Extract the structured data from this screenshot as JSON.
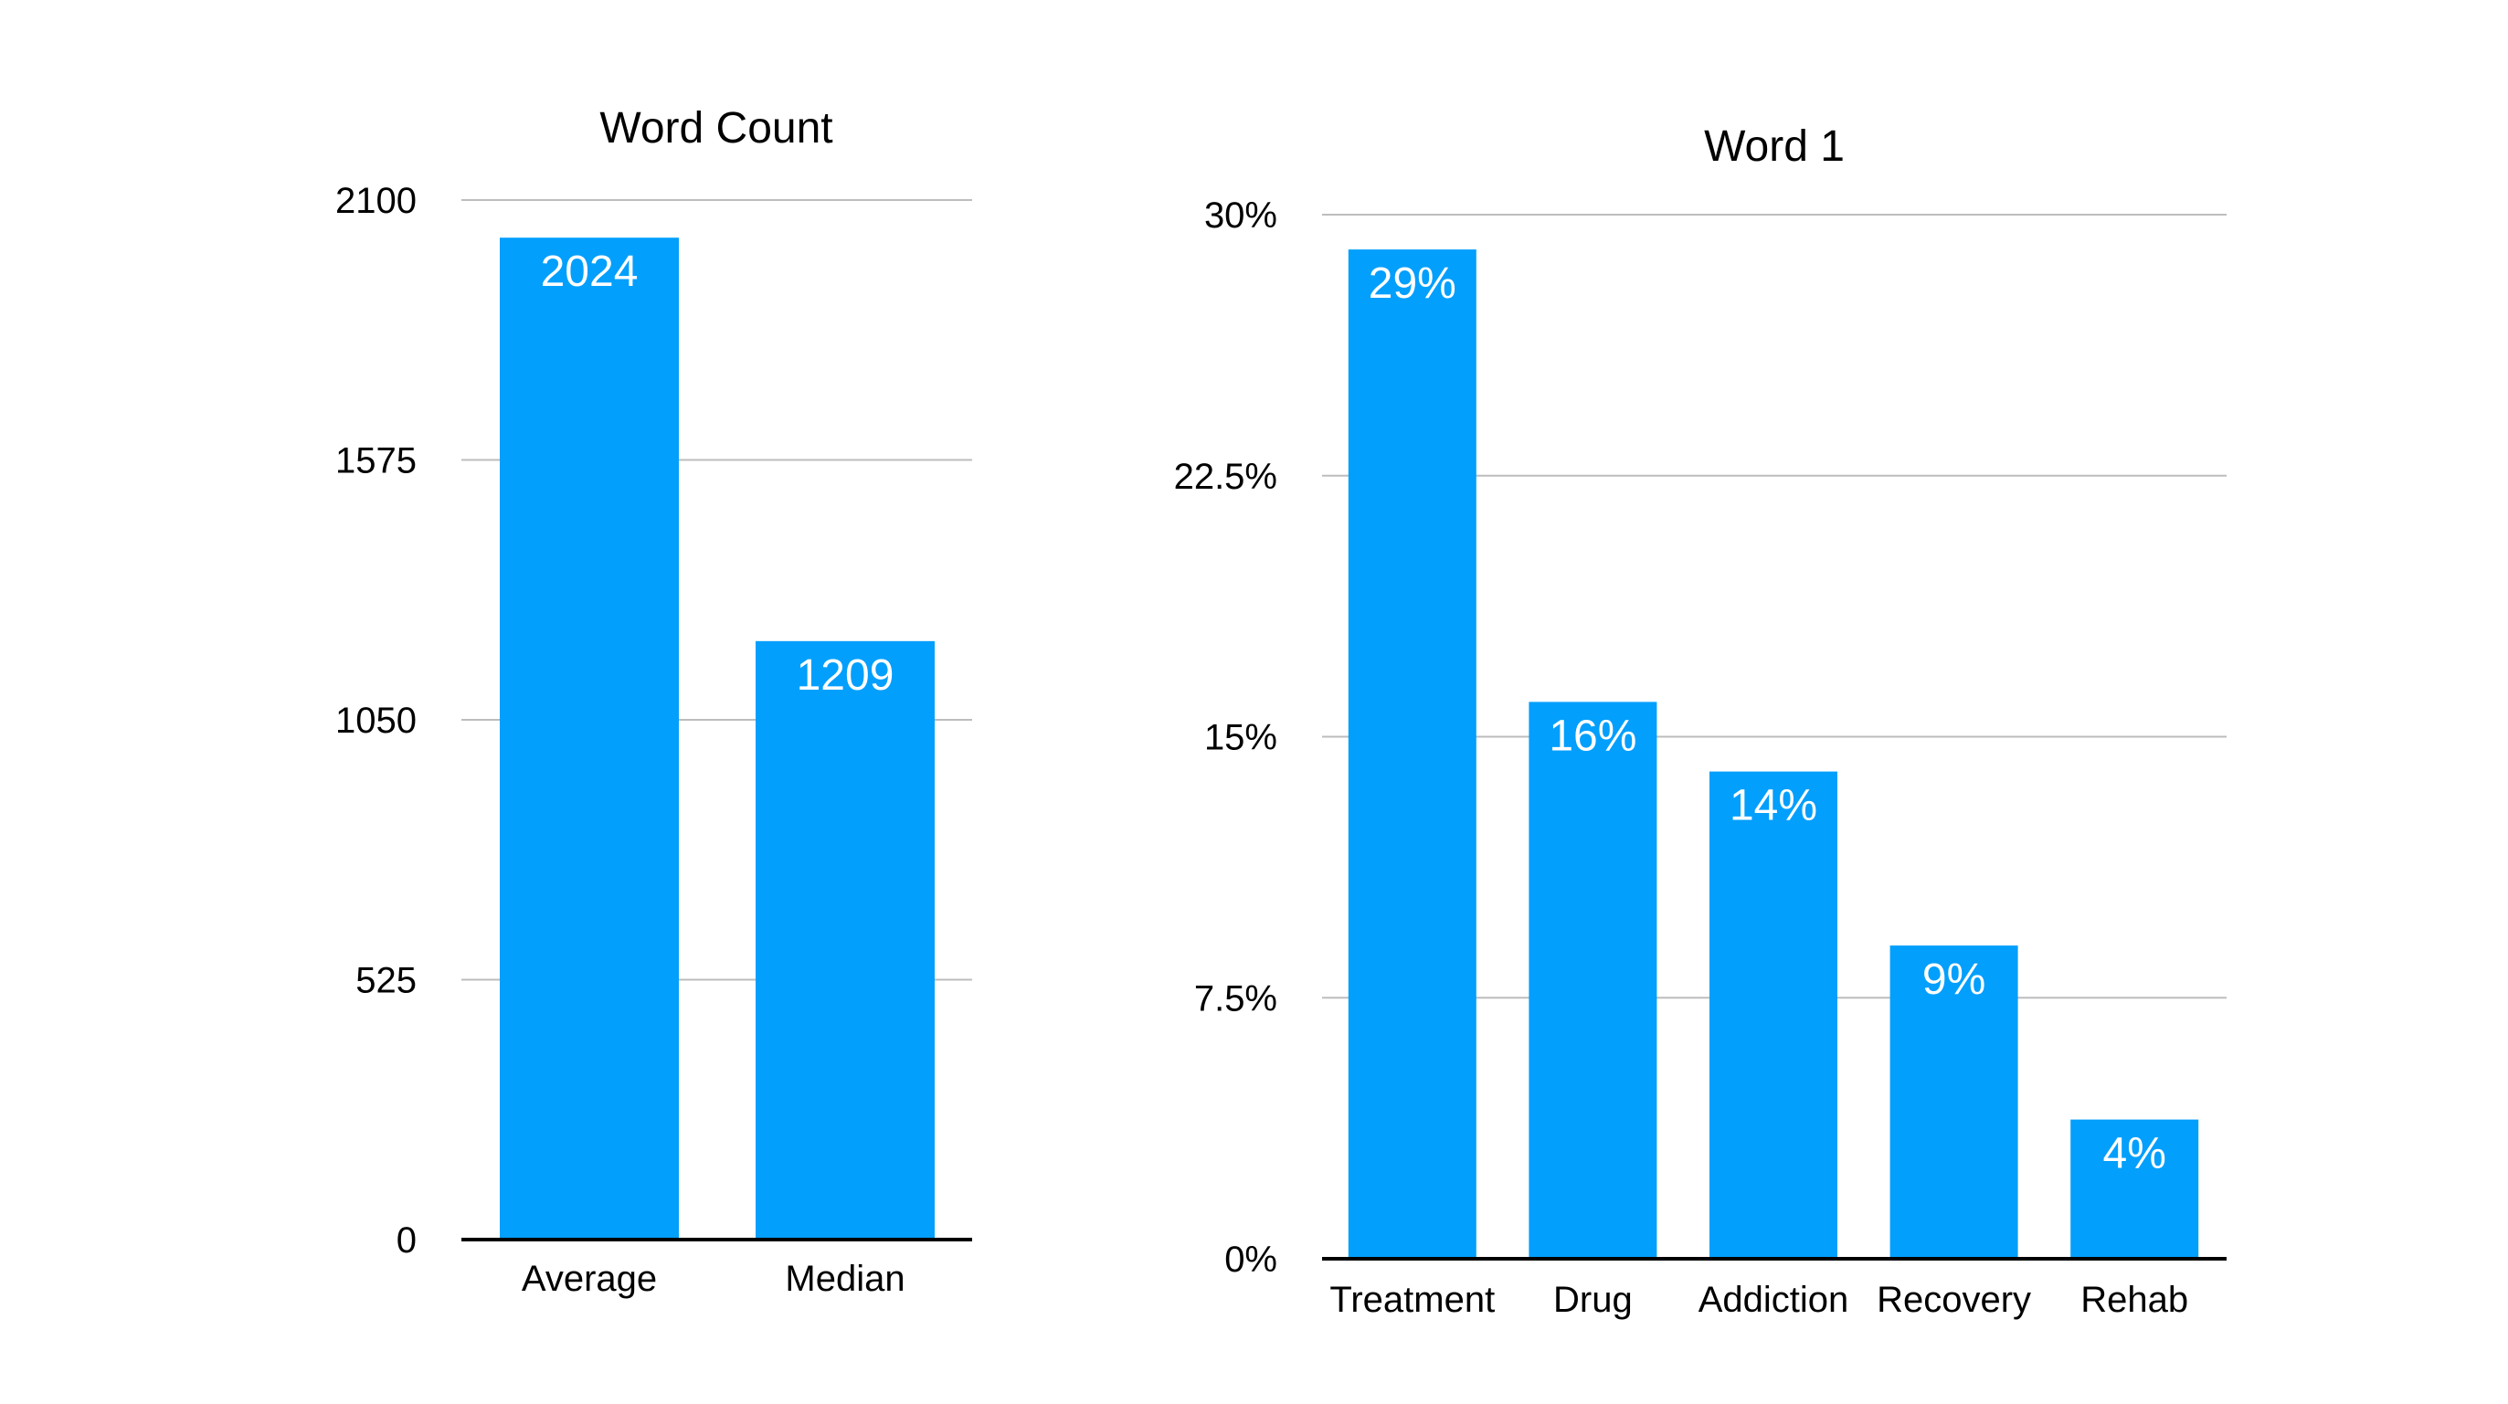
{
  "chart_data": [
    {
      "type": "bar",
      "title": "Word Count",
      "categories": [
        "Average",
        "Median"
      ],
      "values": [
        2024,
        1209
      ],
      "data_labels": [
        "2024",
        "1209"
      ],
      "yticks": [
        0,
        525,
        1050,
        1575,
        2100
      ],
      "ytick_labels": [
        "0",
        "525",
        "1050",
        "1575",
        "2100"
      ],
      "ylim": [
        0,
        2100
      ],
      "xlabel": "",
      "ylabel": "",
      "grid": true,
      "legend": "none",
      "color": "#039FFC"
    },
    {
      "type": "bar",
      "title": "Word 1",
      "categories": [
        "Treatment",
        "Drug",
        "Addiction",
        "Recovery",
        "Rehab"
      ],
      "values": [
        29,
        16,
        14,
        9,
        4
      ],
      "data_labels": [
        "29%",
        "16%",
        "14%",
        "9%",
        "4%"
      ],
      "yticks": [
        0,
        7.5,
        15,
        22.5,
        30
      ],
      "ytick_labels": [
        "0%",
        "7.5%",
        "15%",
        "22.5%",
        "30%"
      ],
      "ylim": [
        0,
        30
      ],
      "xlabel": "",
      "ylabel": "",
      "grid": true,
      "legend": "none",
      "color": "#039FFC"
    }
  ]
}
